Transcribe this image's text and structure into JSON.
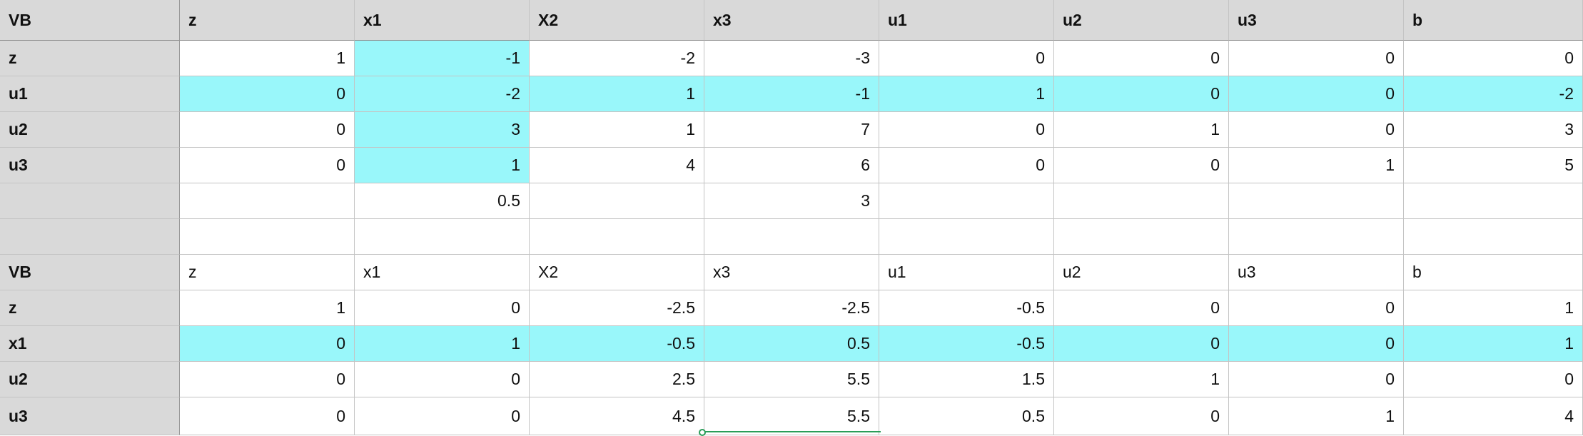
{
  "columns": [
    "VB",
    "z",
    "x1",
    "X2",
    "x3",
    "u1",
    "u2",
    "u3",
    "b"
  ],
  "highlight_color": "#99f7fa",
  "header_fill": "#d9d9d9",
  "selection_color": "#2a9d58",
  "rows": [
    {
      "style": "header",
      "cells": [
        "VB",
        "z",
        "x1",
        "X2",
        "x3",
        "u1",
        "u2",
        "u3",
        "b"
      ],
      "hl": []
    },
    {
      "style": "data",
      "cells": [
        "z",
        "1",
        "-1",
        "-2",
        "-3",
        "0",
        "0",
        "0",
        "0"
      ],
      "hl": [
        2
      ]
    },
    {
      "style": "data",
      "cells": [
        "u1",
        "0",
        "-2",
        "1",
        "-1",
        "1",
        "0",
        "0",
        "-2"
      ],
      "hl": [
        1,
        2,
        3,
        4,
        5,
        6,
        7,
        8
      ]
    },
    {
      "style": "data",
      "cells": [
        "u2",
        "0",
        "3",
        "1",
        "7",
        "0",
        "1",
        "0",
        "3"
      ],
      "hl": [
        2
      ]
    },
    {
      "style": "data",
      "cells": [
        "u3",
        "0",
        "1",
        "4",
        "6",
        "0",
        "0",
        "1",
        "5"
      ],
      "hl": [
        2
      ]
    },
    {
      "style": "data",
      "cells": [
        "",
        "",
        "0.5",
        "",
        "3",
        "",
        "",
        "",
        ""
      ],
      "hl": []
    },
    {
      "style": "data",
      "cells": [
        "",
        "",
        "",
        "",
        "",
        "",
        "",
        "",
        ""
      ],
      "hl": []
    },
    {
      "style": "subheader",
      "cells": [
        "VB",
        "z",
        "x1",
        "X2",
        "x3",
        "u1",
        "u2",
        "u3",
        "b"
      ],
      "hl": []
    },
    {
      "style": "data",
      "cells": [
        "z",
        "1",
        "0",
        "-2.5",
        "-2.5",
        "-0.5",
        "0",
        "0",
        "1"
      ],
      "hl": []
    },
    {
      "style": "data",
      "cells": [
        "x1",
        "0",
        "1",
        "-0.5",
        "0.5",
        "-0.5",
        "0",
        "0",
        "1"
      ],
      "hl": [
        1,
        2,
        3,
        4,
        5,
        6,
        7,
        8
      ]
    },
    {
      "style": "data",
      "cells": [
        "u2",
        "0",
        "0",
        "2.5",
        "5.5",
        "1.5",
        "1",
        "0",
        "0"
      ],
      "hl": []
    },
    {
      "style": "data",
      "cells": [
        "u3",
        "0",
        "0",
        "4.5",
        "5.5",
        "0.5",
        "0",
        "1",
        "4"
      ],
      "hl": []
    }
  ]
}
